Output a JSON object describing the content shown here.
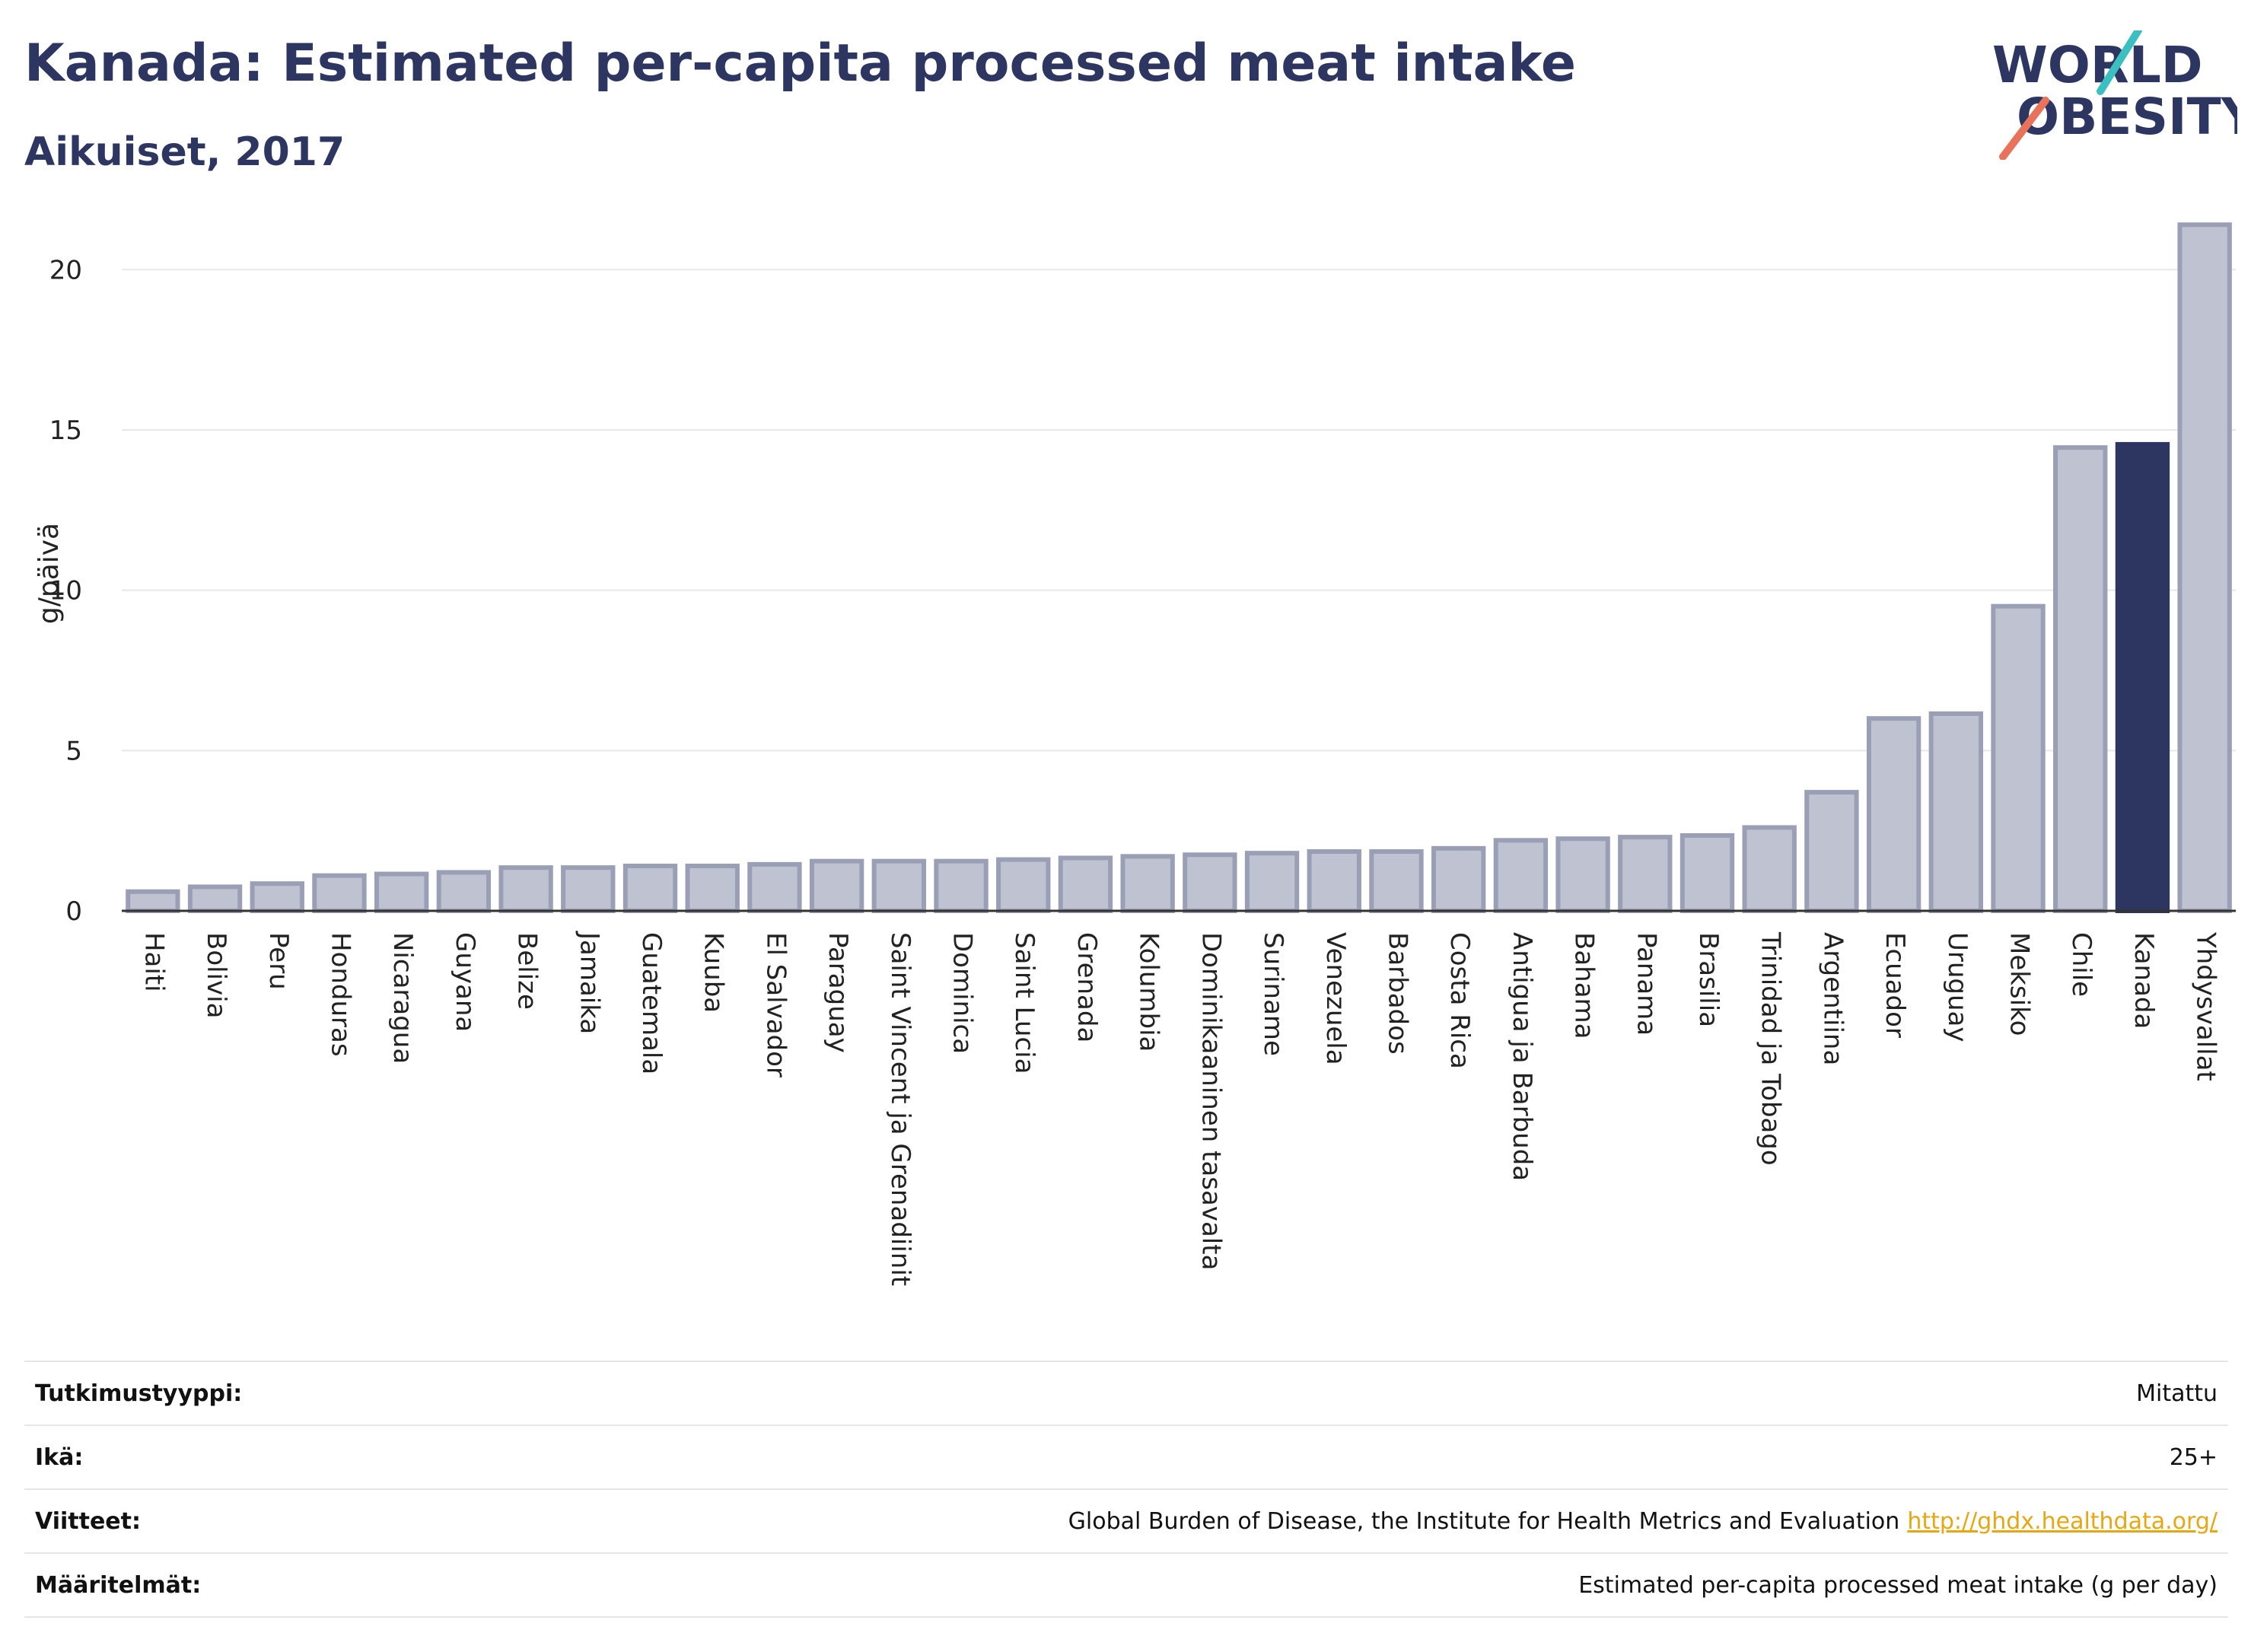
{
  "header": {
    "title": "Kanada: Estimated per-capita processed meat intake",
    "subtitle": "Aikuiset, 2017"
  },
  "logo": {
    "line1": "WORLD",
    "line2": "OBESITY"
  },
  "colors": {
    "bar": "#bfc2d0",
    "bar_stroke": "#9a9fb6",
    "highlight": "#2d3561",
    "grid": "#e8e8ec",
    "logo_text": "#2d3561",
    "logo_teal": "#3bbfc0",
    "logo_coral": "#e8735a",
    "link": "#e7a713"
  },
  "chart_data": {
    "type": "bar",
    "ylabel": "g/päivä",
    "ylim": [
      0,
      22
    ],
    "yticks": [
      0,
      5,
      10,
      15,
      20
    ],
    "grid": true,
    "highlight_category": "Kanada",
    "categories": [
      "Haiti",
      "Bolivia",
      "Peru",
      "Honduras",
      "Nicaragua",
      "Guyana",
      "Belize",
      "Jamaika",
      "Guatemala",
      "Kuuba",
      "El Salvador",
      "Paraguay",
      "Saint Vincent ja Grenadiinit",
      "Dominica",
      "Saint Lucia",
      "Grenada",
      "Kolumbia",
      "Dominikaaninen tasavalta",
      "Suriname",
      "Venezuela",
      "Barbados",
      "Costa Rica",
      "Antigua ja Barbuda",
      "Bahama",
      "Panama",
      "Brasilia",
      "Trinidad ja Tobago",
      "Argentiina",
      "Ecuador",
      "Uruguay",
      "Meksiko",
      "Chile",
      "Kanada",
      "Yhdysvallat"
    ],
    "values": [
      0.6,
      0.75,
      0.85,
      1.1,
      1.15,
      1.2,
      1.35,
      1.35,
      1.4,
      1.4,
      1.45,
      1.55,
      1.55,
      1.55,
      1.6,
      1.65,
      1.7,
      1.75,
      1.8,
      1.85,
      1.85,
      1.95,
      2.2,
      2.25,
      2.3,
      2.35,
      2.6,
      3.7,
      6.0,
      6.15,
      9.5,
      14.45,
      14.55,
      21.4
    ]
  },
  "info": [
    {
      "label": "Tutkimustyyppi:",
      "value": "Mitattu",
      "link": ""
    },
    {
      "label": "Ikä:",
      "value": "25+",
      "link": ""
    },
    {
      "label": "Viitteet:",
      "value": "Global Burden of Disease, the Institute for Health Metrics and Evaluation",
      "link": "http://ghdx.healthdata.org/"
    },
    {
      "label": "Määritelmät:",
      "value": "Estimated per-capita processed meat intake (g per day)",
      "link": ""
    }
  ]
}
